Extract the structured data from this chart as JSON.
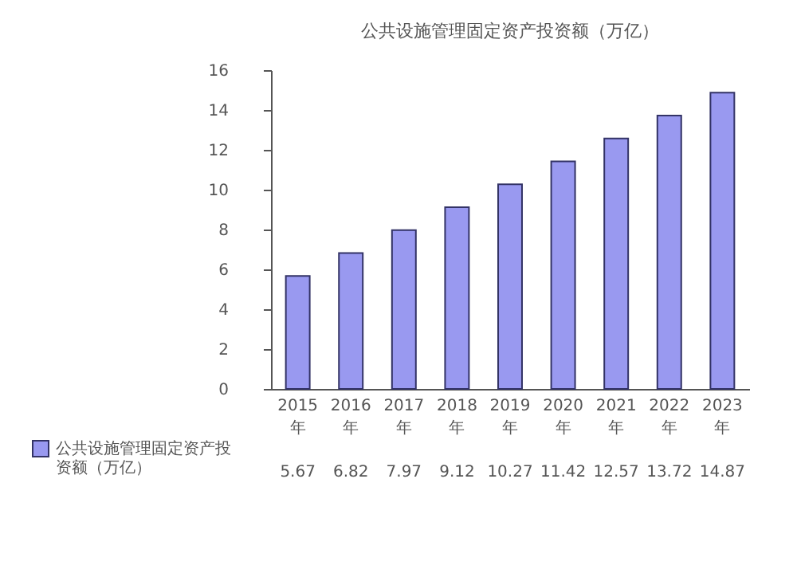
{
  "chart_data": {
    "type": "bar",
    "title": "公共设施管理固定资产投资额（万亿）",
    "categories": [
      "2015年",
      "2016年",
      "2017年",
      "2018年",
      "2019年",
      "2020年",
      "2021年",
      "2022年",
      "2023年"
    ],
    "series": [
      {
        "name": "公共设施管理固定资产投资额（万亿）",
        "color": "#9999f0",
        "values": [
          5.67,
          6.82,
          7.97,
          9.12,
          10.27,
          11.42,
          12.57,
          13.72,
          14.87
        ]
      }
    ],
    "ylim": [
      0,
      16
    ],
    "yticks": [
      0,
      2,
      4,
      6,
      8,
      10,
      12,
      14,
      16
    ],
    "grid": false,
    "legend": "bottom left",
    "data_labels": true
  }
}
